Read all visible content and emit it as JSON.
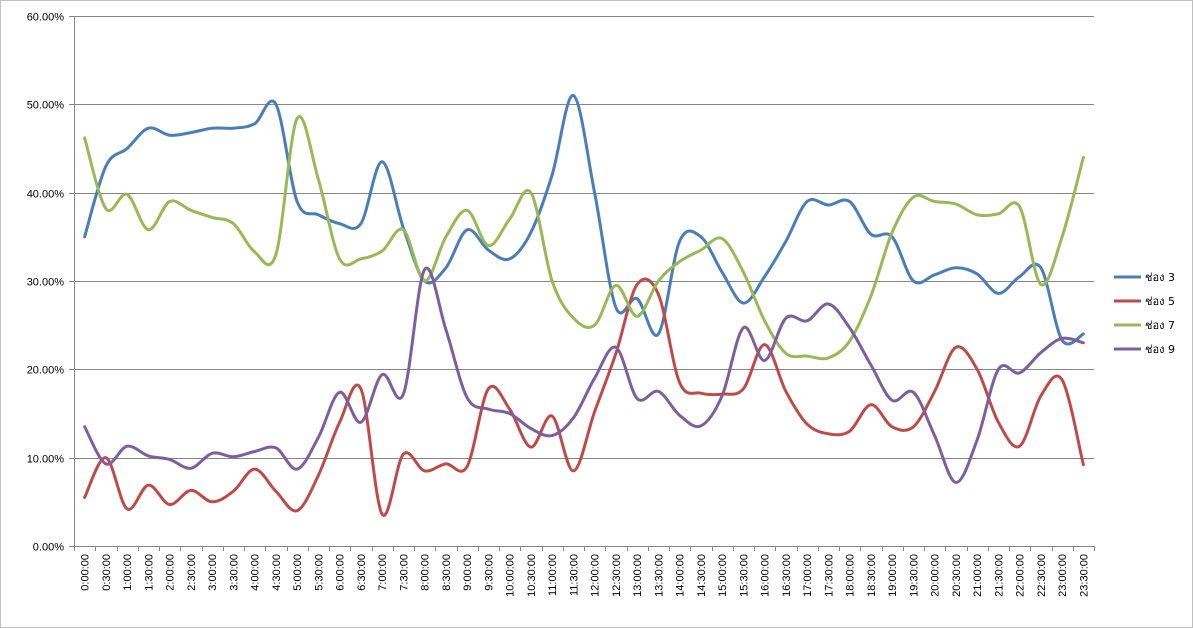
{
  "chart_data": {
    "type": "line",
    "title": "",
    "xlabel": "",
    "ylabel": "",
    "ylim": [
      0,
      0.6
    ],
    "yticks": [
      "0.00%",
      "10.00%",
      "20.00%",
      "30.00%",
      "40.00%",
      "50.00%",
      "60.00%"
    ],
    "grid": "horizontal",
    "legend_position": "right",
    "categories": [
      "0:00:00",
      "0:30:00",
      "1:00:00",
      "1:30:00",
      "2:00:00",
      "2:30:00",
      "3:00:00",
      "3:30:00",
      "4:00:00",
      "4:30:00",
      "5:00:00",
      "5:30:00",
      "6:00:00",
      "6:30:00",
      "7:00:00",
      "7:30:00",
      "8:00:00",
      "8:30:00",
      "9:00:00",
      "9:30:00",
      "10:00:00",
      "10:30:00",
      "11:00:00",
      "11:30:00",
      "12:00:00",
      "12:30:00",
      "13:00:00",
      "13:30:00",
      "14:00:00",
      "14:30:00",
      "15:00:00",
      "15:30:00",
      "16:00:00",
      "16:30:00",
      "17:00:00",
      "17:30:00",
      "18:00:00",
      "18:30:00",
      "19:00:00",
      "19:30:00",
      "20:00:00",
      "20:30:00",
      "21:00:00",
      "21:30:00",
      "22:00:00",
      "22:30:00",
      "23:00:00",
      "23:30:00"
    ],
    "series": [
      {
        "name": "ช่อง 3",
        "color": "#4a7ebb",
        "values": [
          0.35,
          0.43,
          0.45,
          0.473,
          0.465,
          0.468,
          0.473,
          0.473,
          0.478,
          0.5,
          0.39,
          0.375,
          0.365,
          0.365,
          0.435,
          0.36,
          0.3,
          0.315,
          0.358,
          0.335,
          0.325,
          0.355,
          0.42,
          0.51,
          0.4,
          0.27,
          0.28,
          0.24,
          0.345,
          0.35,
          0.31,
          0.275,
          0.305,
          0.345,
          0.39,
          0.386,
          0.39,
          0.353,
          0.35,
          0.3,
          0.307,
          0.315,
          0.308,
          0.286,
          0.305,
          0.315,
          0.233,
          0.24
        ]
      },
      {
        "name": "ช่อง 5",
        "color": "#be4b48",
        "values": [
          0.055,
          0.1,
          0.042,
          0.069,
          0.047,
          0.063,
          0.05,
          0.062,
          0.087,
          0.062,
          0.04,
          0.08,
          0.14,
          0.178,
          0.036,
          0.104,
          0.085,
          0.093,
          0.09,
          0.178,
          0.155,
          0.112,
          0.147,
          0.085,
          0.152,
          0.218,
          0.296,
          0.285,
          0.185,
          0.173,
          0.172,
          0.178,
          0.228,
          0.175,
          0.138,
          0.127,
          0.13,
          0.16,
          0.135,
          0.135,
          0.175,
          0.225,
          0.2,
          0.14,
          0.113,
          0.17,
          0.188,
          0.092
        ]
      },
      {
        "name": "ช่อง 7",
        "color": "#98b954",
        "values": [
          0.462,
          0.382,
          0.398,
          0.358,
          0.39,
          0.38,
          0.372,
          0.365,
          0.333,
          0.33,
          0.484,
          0.415,
          0.325,
          0.325,
          0.334,
          0.358,
          0.3,
          0.35,
          0.38,
          0.34,
          0.37,
          0.4,
          0.3,
          0.258,
          0.25,
          0.295,
          0.26,
          0.3,
          0.322,
          0.335,
          0.348,
          0.31,
          0.255,
          0.218,
          0.215,
          0.213,
          0.232,
          0.283,
          0.355,
          0.395,
          0.39,
          0.387,
          0.375,
          0.376,
          0.384,
          0.296,
          0.35,
          0.44
        ]
      },
      {
        "name": "ช่อง 9",
        "color": "#7d5fa0",
        "values": [
          0.135,
          0.093,
          0.113,
          0.102,
          0.098,
          0.088,
          0.105,
          0.101,
          0.107,
          0.111,
          0.087,
          0.123,
          0.174,
          0.14,
          0.194,
          0.172,
          0.313,
          0.245,
          0.168,
          0.155,
          0.15,
          0.133,
          0.125,
          0.145,
          0.19,
          0.225,
          0.167,
          0.175,
          0.148,
          0.136,
          0.17,
          0.247,
          0.21,
          0.258,
          0.255,
          0.274,
          0.247,
          0.205,
          0.165,
          0.174,
          0.125,
          0.072,
          0.12,
          0.2,
          0.196,
          0.219,
          0.235,
          0.23
        ]
      }
    ]
  }
}
